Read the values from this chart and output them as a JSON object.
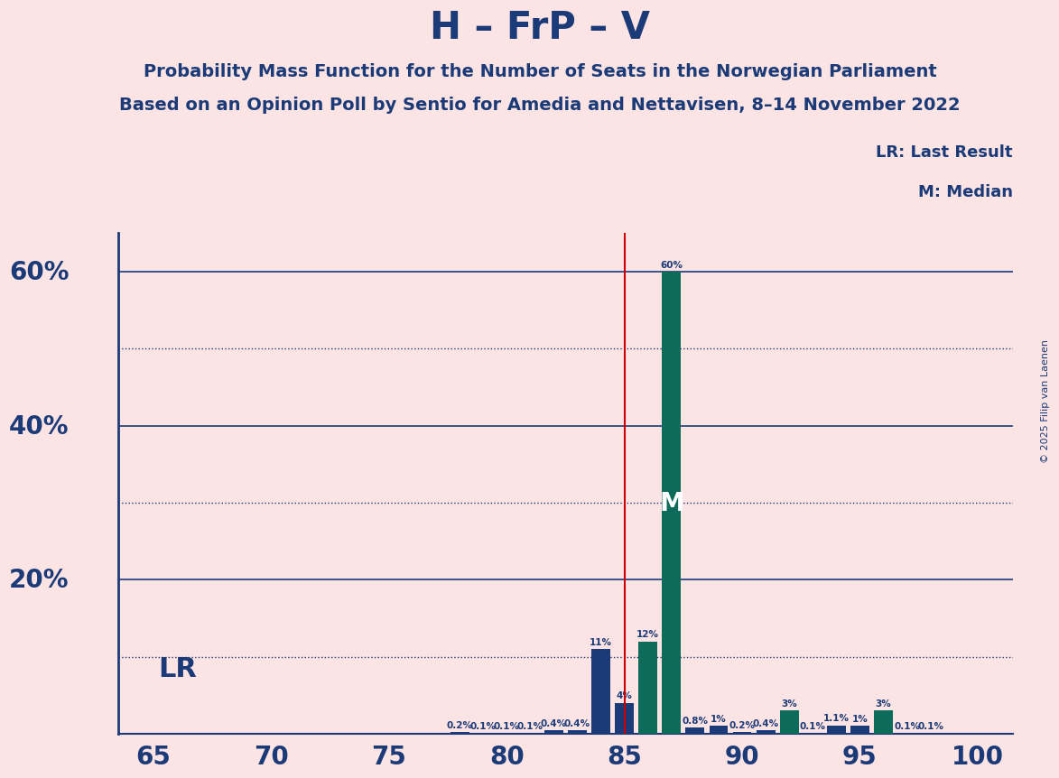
{
  "title": "H – FrP – V",
  "subtitle1": "Probability Mass Function for the Number of Seats in the Norwegian Parliament",
  "subtitle2": "Based on an Opinion Poll by Sentio for Amedia and Nettavisen, 8–14 November 2022",
  "copyright": "© 2025 Filip van Laenen",
  "seats": [
    65,
    66,
    67,
    68,
    69,
    70,
    71,
    72,
    73,
    74,
    75,
    76,
    77,
    78,
    79,
    80,
    81,
    82,
    83,
    84,
    85,
    86,
    87,
    88,
    89,
    90,
    91,
    92,
    93,
    94,
    95,
    96,
    97,
    98,
    99,
    100
  ],
  "values": [
    0.0,
    0.0,
    0.0,
    0.0,
    0.0,
    0.0,
    0.0,
    0.0,
    0.0,
    0.0,
    0.0,
    0.0,
    0.0,
    0.2,
    0.1,
    0.1,
    0.1,
    0.4,
    0.4,
    11.0,
    4.0,
    12.0,
    60.0,
    0.8,
    1.0,
    0.2,
    0.4,
    3.0,
    0.1,
    1.1,
    1.0,
    3.0,
    0.1,
    0.1,
    0.0,
    0.0
  ],
  "colors": [
    "#1b3a78",
    "#1b3a78",
    "#1b3a78",
    "#1b3a78",
    "#1b3a78",
    "#1b3a78",
    "#1b3a78",
    "#1b3a78",
    "#1b3a78",
    "#1b3a78",
    "#1b3a78",
    "#1b3a78",
    "#1b3a78",
    "#1b3a78",
    "#1b3a78",
    "#1b3a78",
    "#1b3a78",
    "#1b3a78",
    "#1b3a78",
    "#1b3a78",
    "#1b3a78",
    "#0d6b5a",
    "#0d6b5a",
    "#1b3a78",
    "#1b3a78",
    "#1b3a78",
    "#1b3a78",
    "#0d6b5a",
    "#1b3a78",
    "#1b3a78",
    "#1b3a78",
    "#0d6b5a",
    "#1b3a78",
    "#1b3a78",
    "#0d6b5a",
    "#0d6b5a"
  ],
  "lr_seat": 85,
  "median_seat": 87,
  "ylim_max": 65,
  "major_yticks": [
    20,
    40,
    60
  ],
  "major_ytick_labels": [
    "20%",
    "40%",
    "60%"
  ],
  "dotted_yticks": [
    10,
    30,
    50
  ],
  "bg_color": "#fce4e4",
  "bar_blue": "#1b3a78",
  "bar_teal": "#0d6b5a",
  "lr_color": "#cc0000",
  "axis_color": "#1b3a78",
  "text_color": "#1b3a78"
}
